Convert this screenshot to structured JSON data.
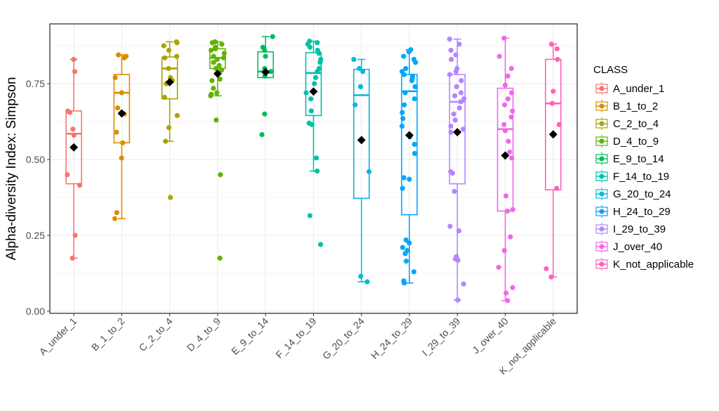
{
  "chart_data": {
    "type": "boxplot",
    "title": "",
    "xlabel": "",
    "ylabel": "Alpha-diversity Index: Simpson",
    "ylim": [
      -0.007,
      0.947
    ],
    "yticks": [
      0.0,
      0.25,
      0.5,
      0.75
    ],
    "ytick_labels": [
      "0.00",
      "0.25",
      "0.50",
      "0.75"
    ],
    "grid": true,
    "legend": {
      "title": "CLASS",
      "position": "right"
    },
    "mean_marker": "black-diamond",
    "categories": [
      "A_under_1",
      "B_1_to_2",
      "C_2_to_4",
      "D_4_to_9",
      "E_9_to_14",
      "F_14_to_19",
      "G_20_to_24",
      "H_24_to_29",
      "I_29_to_39",
      "J_over_40",
      "K_not_applicable"
    ],
    "series": [
      {
        "name": "A_under_1",
        "color": "#F8766D",
        "box": {
          "whisker_low": 0.175,
          "q1": 0.42,
          "median": 0.585,
          "q3": 0.66,
          "whisker_high": 0.83
        },
        "mean": 0.54,
        "points": [
          0.83,
          0.79,
          0.66,
          0.655,
          0.6,
          0.58,
          0.45,
          0.415,
          0.25,
          0.175
        ]
      },
      {
        "name": "B_1_to_2",
        "color": "#DB8E00",
        "box": {
          "whisker_low": 0.305,
          "q1": 0.555,
          "median": 0.72,
          "q3": 0.78,
          "whisker_high": 0.845
        },
        "mean": 0.652,
        "points": [
          0.845,
          0.84,
          0.835,
          0.77,
          0.72,
          0.67,
          0.65,
          0.59,
          0.555,
          0.505,
          0.325,
          0.305
        ]
      },
      {
        "name": "C_2_to_4",
        "color": "#AEA200",
        "box": {
          "whisker_low": 0.56,
          "q1": 0.7,
          "median": 0.8,
          "q3": 0.838,
          "whisker_high": 0.888
        },
        "mean": 0.755,
        "points": [
          0.888,
          0.885,
          0.875,
          0.86,
          0.84,
          0.835,
          0.8,
          0.77,
          0.76,
          0.75,
          0.705,
          0.645,
          0.605,
          0.56,
          0.375
        ]
      },
      {
        "name": "D_4_to_9",
        "color": "#64B200",
        "box": {
          "whisker_low": 0.71,
          "q1": 0.8,
          "median": 0.835,
          "q3": 0.865,
          "whisker_high": 0.888
        },
        "mean": 0.783,
        "points": [
          0.888,
          0.885,
          0.88,
          0.87,
          0.865,
          0.86,
          0.85,
          0.84,
          0.835,
          0.83,
          0.82,
          0.81,
          0.8,
          0.795,
          0.765,
          0.76,
          0.735,
          0.72,
          0.715,
          0.71,
          0.63,
          0.45,
          0.175
        ]
      },
      {
        "name": "E_9_to_14",
        "color": "#00BD5C",
        "box": {
          "whisker_low": 0.77,
          "q1": 0.77,
          "median": 0.79,
          "q3": 0.855,
          "whisker_high": 0.905
        },
        "mean": 0.788,
        "points": [
          0.905,
          0.87,
          0.86,
          0.84,
          0.8,
          0.79,
          0.775,
          0.65,
          0.582
        ]
      },
      {
        "name": "F_14_to_19",
        "color": "#00C1A7",
        "box": {
          "whisker_low": 0.462,
          "q1": 0.645,
          "median": 0.785,
          "q3": 0.852,
          "whisker_high": 0.89
        },
        "mean": 0.724,
        "points": [
          0.89,
          0.885,
          0.88,
          0.87,
          0.86,
          0.85,
          0.83,
          0.82,
          0.8,
          0.79,
          0.77,
          0.75,
          0.72,
          0.7,
          0.66,
          0.62,
          0.615,
          0.505,
          0.462,
          0.315,
          0.22
        ]
      },
      {
        "name": "G_20_to_24",
        "color": "#00BADE",
        "box": {
          "whisker_low": 0.097,
          "q1": 0.372,
          "median": 0.712,
          "q3": 0.797,
          "whisker_high": 0.83
        },
        "mean": 0.564,
        "points": [
          0.83,
          0.8,
          0.79,
          0.74,
          0.68,
          0.46,
          0.115,
          0.097
        ]
      },
      {
        "name": "H_24_to_29",
        "color": "#00A6FF",
        "box": {
          "whisker_low": 0.093,
          "q1": 0.318,
          "median": 0.725,
          "q3": 0.78,
          "whisker_high": 0.862
        },
        "mean": 0.58,
        "points": [
          0.862,
          0.855,
          0.84,
          0.83,
          0.82,
          0.8,
          0.79,
          0.78,
          0.775,
          0.77,
          0.76,
          0.74,
          0.72,
          0.7,
          0.68,
          0.655,
          0.635,
          0.61,
          0.575,
          0.55,
          0.52,
          0.44,
          0.435,
          0.405,
          0.235,
          0.225,
          0.21,
          0.2,
          0.19,
          0.165,
          0.13,
          0.1,
          0.093
        ]
      },
      {
        "name": "I_29_to_39",
        "color": "#B385FF",
        "box": {
          "whisker_low": 0.037,
          "q1": 0.42,
          "median": 0.69,
          "q3": 0.78,
          "whisker_high": 0.897
        },
        "mean": 0.59,
        "points": [
          0.897,
          0.88,
          0.86,
          0.845,
          0.83,
          0.8,
          0.79,
          0.78,
          0.76,
          0.74,
          0.72,
          0.71,
          0.7,
          0.69,
          0.67,
          0.65,
          0.63,
          0.61,
          0.6,
          0.59,
          0.46,
          0.455,
          0.395,
          0.28,
          0.265,
          0.18,
          0.172,
          0.168,
          0.09,
          0.037
        ]
      },
      {
        "name": "J_over_40",
        "color": "#EF67EB",
        "box": {
          "whisker_low": 0.035,
          "q1": 0.33,
          "median": 0.6,
          "q3": 0.735,
          "whisker_high": 0.9
        },
        "mean": 0.513,
        "points": [
          0.9,
          0.84,
          0.8,
          0.775,
          0.745,
          0.72,
          0.7,
          0.68,
          0.66,
          0.64,
          0.615,
          0.595,
          0.56,
          0.525,
          0.505,
          0.38,
          0.335,
          0.33,
          0.245,
          0.2,
          0.145,
          0.078,
          0.06,
          0.035
        ]
      },
      {
        "name": "K_not_applicable",
        "color": "#FF63B6",
        "box": {
          "whisker_low": 0.113,
          "q1": 0.4,
          "median": 0.685,
          "q3": 0.83,
          "whisker_high": 0.88
        },
        "mean": 0.583,
        "points": [
          0.88,
          0.865,
          0.83,
          0.725,
          0.685,
          0.615,
          0.405,
          0.14,
          0.113
        ]
      }
    ]
  }
}
